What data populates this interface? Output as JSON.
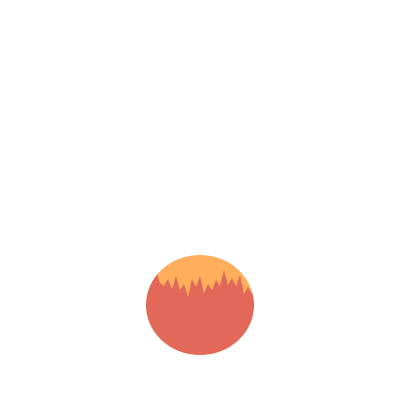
{
  "graphic": {
    "label": "",
    "colors": {
      "background": "#ffffff",
      "top_layer": "#ffae5b",
      "bottom_layer": "#e2685a"
    }
  }
}
